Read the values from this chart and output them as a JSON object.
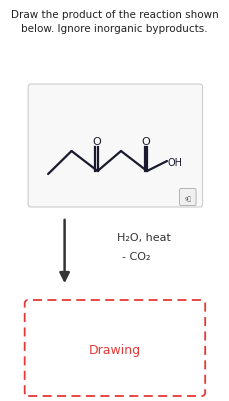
{
  "title_line1": "Draw the product of the reaction shown",
  "title_line2": "below. Ignore inorganic byproducts.",
  "reagent_line1": "H₂O, heat",
  "reagent_line2": "- CO₂",
  "drawing_label": "Drawing",
  "bg_color": "#ffffff",
  "title_color": "#222222",
  "reagent_color": "#333333",
  "drawing_color": "#e53935",
  "molecule_box_edge": "#cccccc",
  "molecule_box_face": "#f8f8f8",
  "arrow_color": "#333333",
  "mol_line_color": "#1a1a2e",
  "icon_edge": "#aaaaaa",
  "icon_face": "#f0f0f0",
  "icon_text_color": "#555555"
}
